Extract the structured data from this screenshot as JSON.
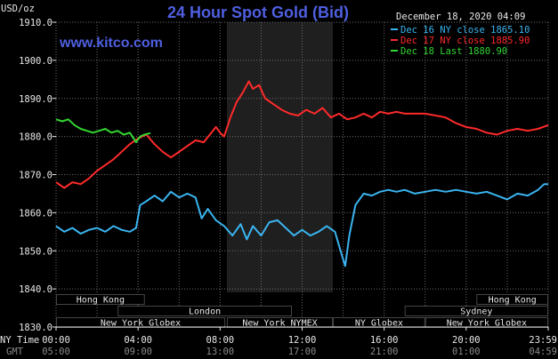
{
  "header": {
    "title": "24 Hour Spot Gold (Bid)",
    "site": "www.kitco.com",
    "datetime": "December 18, 2020 04:09",
    "unit_label": "USD/oz"
  },
  "legend": [
    {
      "label": "Dec 16 NY close 1865.10",
      "color": "#3ab4f0"
    },
    {
      "label": "Dec 17 NY close 1885.90",
      "color": "#ff2a2a"
    },
    {
      "label": "Dec 18 Last 1880.90",
      "color": "#33d633"
    }
  ],
  "axis_labels": {
    "ny_time": "NY Time",
    "gmt": "GMT"
  },
  "colors": {
    "grid": "#6b6b6b",
    "session_bar": "#444444",
    "nymex_shade": "#1f1f1f",
    "dec16": "#3ab4f0",
    "dec17": "#ff2a2a",
    "dec18": "#33d633"
  },
  "sessions": {
    "row1": [
      {
        "label": "Hong Kong",
        "start": 0,
        "end": 4.33
      },
      {
        "label": "Hong Kong",
        "start": 20.5,
        "end": 24
      }
    ],
    "row2": [
      {
        "label": "London",
        "start": 3,
        "end": 11.5
      },
      {
        "label": "Sydney",
        "start": 17,
        "end": 24
      }
    ],
    "row3": [
      {
        "label": "New York Globex",
        "start": 0,
        "end": 8.25
      },
      {
        "label": "New York NYMEX",
        "start": 8.33,
        "end": 13.5
      },
      {
        "label": "NY Globex",
        "start": 13.5,
        "end": 18
      },
      {
        "label": "New York Globex",
        "start": 18,
        "end": 24
      }
    ]
  },
  "chart_data": {
    "type": "line",
    "title": "24 Hour Spot Gold (Bid)",
    "ylabel": "USD/oz",
    "ylim": [
      1830,
      1910
    ],
    "xlim": [
      0,
      24
    ],
    "nymex_shade": [
      8.33,
      13.5
    ],
    "y_ticks": [
      "1910.0",
      "1900.0",
      "1890.0",
      "1880.0",
      "1870.0",
      "1860.0",
      "1850.0",
      "1840.0",
      "1830.0"
    ],
    "x_ticks_ny": [
      {
        "label": "00:00",
        "x": 0
      },
      {
        "label": "04:00",
        "x": 4
      },
      {
        "label": "08:00",
        "x": 8
      },
      {
        "label": "12:00",
        "x": 12
      },
      {
        "label": "16:00",
        "x": 16
      },
      {
        "label": "20:00",
        "x": 20
      },
      {
        "label": "23:59",
        "x": 24
      }
    ],
    "x_ticks_gmt": [
      "05:00",
      "09:00",
      "13:00",
      "17:00",
      "21:00",
      "01:00",
      "04:59"
    ],
    "grid": true,
    "series": [
      {
        "name": "Dec 16 NY close 1865.10",
        "color": "#3ab4f0",
        "x": [
          0,
          0.4,
          0.8,
          1.2,
          1.6,
          2.0,
          2.4,
          2.8,
          3.2,
          3.6,
          3.9,
          4.1,
          4.4,
          4.8,
          5.2,
          5.6,
          6.0,
          6.4,
          6.8,
          7.1,
          7.4,
          7.8,
          8.2,
          8.6,
          9.0,
          9.3,
          9.6,
          10.0,
          10.4,
          10.8,
          11.2,
          11.6,
          12.0,
          12.4,
          12.8,
          13.2,
          13.6,
          13.9,
          14.1,
          14.3,
          14.6,
          15.0,
          15.4,
          15.8,
          16.2,
          16.6,
          17.0,
          17.5,
          18.0,
          18.5,
          19.0,
          19.5,
          20.0,
          20.5,
          21.0,
          21.5,
          22.0,
          22.5,
          23.0,
          23.5,
          23.8,
          24.0
        ],
        "values": [
          1856.5,
          1855.0,
          1856.0,
          1854.5,
          1855.5,
          1856.0,
          1855.0,
          1856.5,
          1855.5,
          1855.0,
          1856.0,
          1862.0,
          1863.0,
          1864.5,
          1863.0,
          1865.5,
          1864.0,
          1865.0,
          1864.0,
          1858.5,
          1861.0,
          1858.0,
          1856.5,
          1854.0,
          1857.0,
          1853.0,
          1856.5,
          1854.0,
          1857.5,
          1858.0,
          1856.0,
          1854.0,
          1855.5,
          1854.0,
          1855.0,
          1856.5,
          1855.0,
          1849.5,
          1846.0,
          1854.0,
          1862.0,
          1865.0,
          1864.5,
          1865.5,
          1866.0,
          1865.5,
          1866.0,
          1865.0,
          1865.5,
          1866.0,
          1865.5,
          1866.0,
          1865.5,
          1865.0,
          1865.5,
          1864.5,
          1863.5,
          1865.0,
          1864.5,
          1866.0,
          1867.5,
          1867.5
        ]
      },
      {
        "name": "Dec 17 NY close 1885.90",
        "color": "#ff2a2a",
        "x": [
          0,
          0.4,
          0.8,
          1.2,
          1.6,
          2.0,
          2.4,
          2.8,
          3.2,
          3.6,
          4.0,
          4.4,
          4.8,
          5.2,
          5.6,
          6.0,
          6.4,
          6.8,
          7.2,
          7.5,
          7.8,
          8.0,
          8.2,
          8.5,
          8.8,
          9.1,
          9.4,
          9.6,
          9.9,
          10.2,
          10.6,
          11.0,
          11.4,
          11.8,
          12.2,
          12.6,
          13.0,
          13.4,
          13.8,
          14.2,
          14.6,
          15.0,
          15.4,
          15.8,
          16.2,
          16.6,
          17.0,
          17.5,
          18.0,
          18.5,
          19.0,
          19.5,
          20.0,
          20.5,
          21.0,
          21.5,
          22.0,
          22.5,
          23.0,
          23.5,
          24.0
        ],
        "values": [
          1868.0,
          1866.5,
          1868.0,
          1867.5,
          1869.0,
          1871.0,
          1872.5,
          1874.0,
          1876.0,
          1878.0,
          1879.5,
          1880.5,
          1878.0,
          1876.0,
          1874.5,
          1876.0,
          1877.5,
          1879.0,
          1878.5,
          1880.5,
          1882.5,
          1881.0,
          1880.0,
          1885.0,
          1889.0,
          1891.5,
          1894.5,
          1892.5,
          1893.5,
          1890.0,
          1888.5,
          1887.0,
          1886.0,
          1885.5,
          1887.0,
          1886.0,
          1887.5,
          1885.0,
          1886.0,
          1884.5,
          1885.0,
          1886.0,
          1885.0,
          1886.5,
          1886.0,
          1886.5,
          1886.0,
          1886.0,
          1886.0,
          1885.5,
          1885.0,
          1883.5,
          1882.5,
          1882.0,
          1881.0,
          1880.5,
          1881.5,
          1882.0,
          1881.5,
          1882.0,
          1883.0
        ]
      },
      {
        "name": "Dec 18 Last 1880.90",
        "color": "#33d633",
        "x": [
          0,
          0.3,
          0.6,
          0.9,
          1.2,
          1.5,
          1.8,
          2.1,
          2.4,
          2.7,
          3.0,
          3.3,
          3.6,
          3.9,
          4.1,
          4.3,
          4.6
        ],
        "values": [
          1884.5,
          1884.0,
          1884.5,
          1883.0,
          1882.0,
          1881.5,
          1881.0,
          1881.5,
          1882.0,
          1881.0,
          1881.5,
          1880.5,
          1881.0,
          1878.5,
          1880.0,
          1880.5,
          1880.9
        ]
      }
    ]
  }
}
